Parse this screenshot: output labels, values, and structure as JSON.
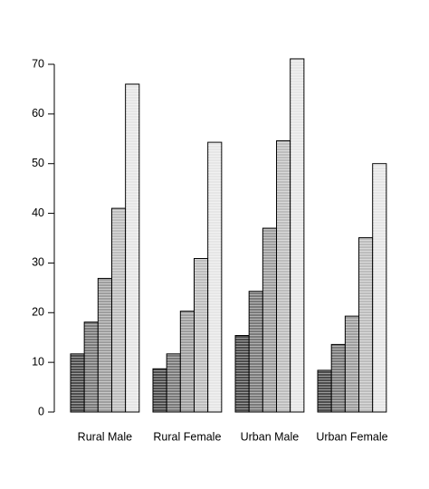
{
  "chart_data": {
    "type": "bar",
    "layout": "grouped",
    "categories": [
      "Rural Male",
      "Rural Female",
      "Urban Male",
      "Urban Female"
    ],
    "series": [
      {
        "color": "#4d4d4d",
        "values": [
          11.7,
          8.7,
          15.4,
          8.4
        ]
      },
      {
        "color": "#7a7a7a",
        "values": [
          18.1,
          11.7,
          24.3,
          13.6
        ]
      },
      {
        "color": "#9e9e9e",
        "values": [
          26.9,
          20.3,
          37.0,
          19.3
        ]
      },
      {
        "color": "#bdbdbd",
        "values": [
          41.0,
          30.9,
          54.6,
          35.1
        ]
      },
      {
        "color": "#e6e6e6",
        "values": [
          66.0,
          54.3,
          71.1,
          50.0
        ]
      }
    ],
    "ylim": [
      0,
      70
    ],
    "yticks": [
      0,
      10,
      20,
      30,
      40,
      50,
      60,
      70
    ],
    "grid": false
  }
}
